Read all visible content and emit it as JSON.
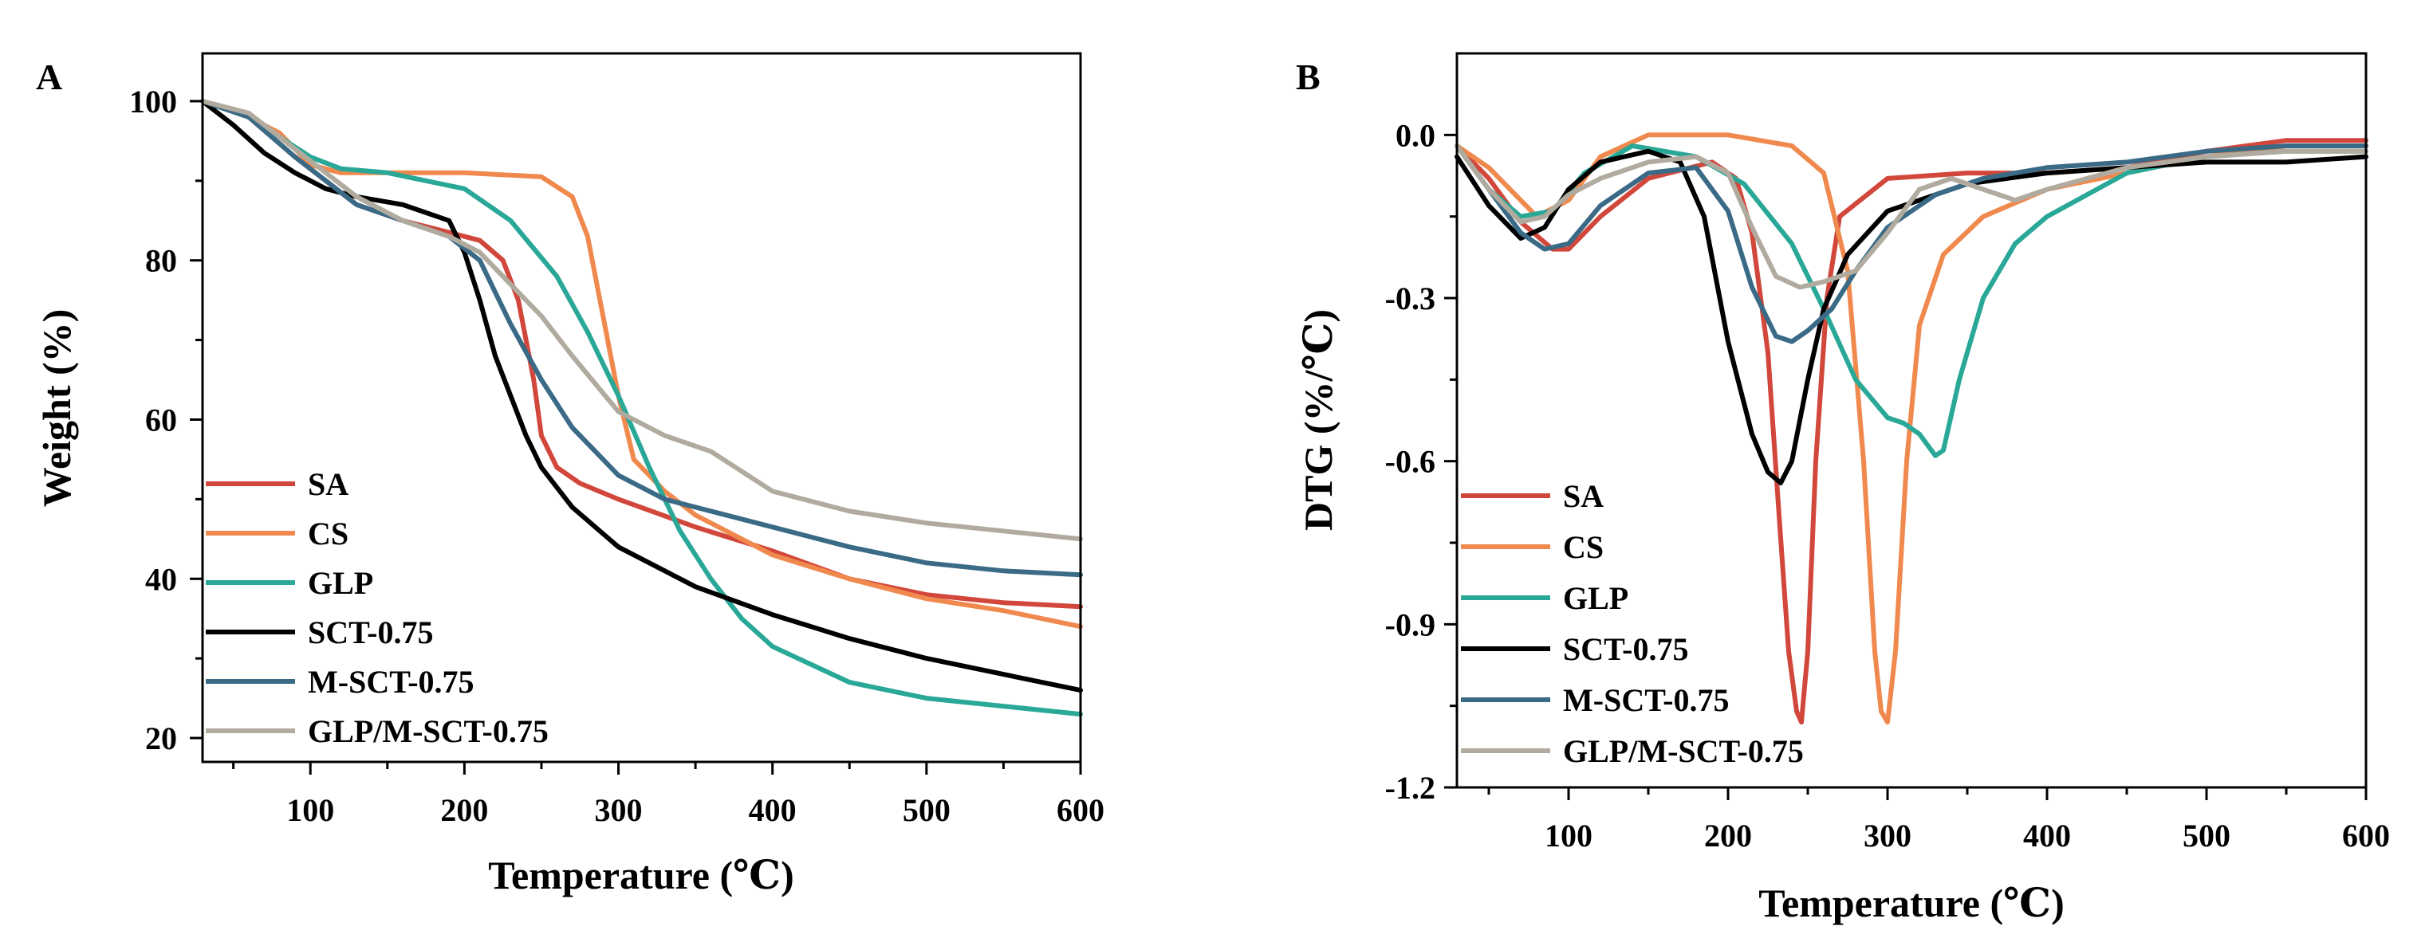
{
  "colors": {
    "SA": "#d2473b",
    "CS": "#f0894e",
    "GLP": "#2aa897",
    "SCT-0.75": "#000000",
    "M-SCT-0.75": "#3a6a86",
    "GLP/M-SCT-0.75": "#b0ab9e"
  },
  "chart_data": [
    {
      "id": "A",
      "panel_label": "A",
      "type": "line",
      "title": "",
      "xlabel": "Temperature (℃)",
      "ylabel": "Weight (%)",
      "xlim": [
        30,
        600
      ],
      "ylim": [
        17,
        106
      ],
      "xticks": [
        100,
        200,
        300,
        400,
        500,
        600
      ],
      "yticks": [
        20,
        40,
        60,
        80,
        100
      ],
      "legend_position": "bottom-left",
      "series": [
        {
          "name": "SA",
          "color": "#d2473b",
          "x": [
            30,
            60,
            90,
            110,
            130,
            160,
            190,
            210,
            225,
            235,
            245,
            250,
            260,
            275,
            300,
            350,
            400,
            450,
            500,
            550,
            600
          ],
          "y": [
            100,
            98,
            93,
            90,
            87,
            85,
            83.5,
            82.5,
            80,
            75,
            65,
            58,
            54,
            52,
            50,
            46.5,
            43.5,
            40,
            38,
            37,
            36.5
          ]
        },
        {
          "name": "CS",
          "color": "#f0894e",
          "x": [
            30,
            60,
            80,
            100,
            120,
            150,
            200,
            250,
            270,
            280,
            290,
            300,
            310,
            330,
            350,
            400,
            450,
            500,
            550,
            600
          ],
          "y": [
            100,
            98,
            96,
            92,
            91,
            91,
            91,
            90.5,
            88,
            83,
            73,
            63,
            55,
            51,
            48,
            43,
            40,
            37.5,
            36,
            34
          ]
        },
        {
          "name": "GLP",
          "color": "#2aa897",
          "x": [
            30,
            60,
            80,
            100,
            120,
            150,
            200,
            230,
            260,
            280,
            300,
            320,
            340,
            360,
            380,
            400,
            450,
            500,
            550,
            600
          ],
          "y": [
            100,
            98,
            95.5,
            93,
            91.5,
            91,
            89,
            85,
            78,
            71,
            63,
            54,
            46,
            40,
            35,
            31.5,
            27,
            25,
            24,
            23
          ]
        },
        {
          "name": "SCT-0.75",
          "color": "#000000",
          "x": [
            30,
            50,
            70,
            90,
            110,
            130,
            160,
            190,
            200,
            210,
            220,
            230,
            240,
            250,
            270,
            300,
            350,
            400,
            450,
            500,
            550,
            600
          ],
          "y": [
            100,
            97,
            93.5,
            91,
            89,
            88,
            87,
            85,
            81,
            75,
            68,
            63,
            58,
            54,
            49,
            44,
            39,
            35.5,
            32.5,
            30,
            28,
            26
          ]
        },
        {
          "name": "M-SCT-0.75",
          "color": "#3a6a86",
          "x": [
            30,
            60,
            90,
            110,
            130,
            160,
            190,
            210,
            230,
            250,
            270,
            300,
            330,
            350,
            400,
            450,
            500,
            550,
            600
          ],
          "y": [
            100,
            98,
            93,
            90,
            87,
            85,
            83,
            80,
            72,
            65,
            59,
            53,
            50,
            49,
            46.5,
            44,
            42,
            41,
            40.5
          ]
        },
        {
          "name": "GLP/M-SCT-0.75",
          "color": "#b0ab9e",
          "x": [
            30,
            60,
            90,
            110,
            130,
            160,
            190,
            210,
            230,
            250,
            270,
            300,
            330,
            360,
            400,
            450,
            500,
            550,
            600
          ],
          "y": [
            100,
            98.5,
            94,
            91,
            88,
            85,
            83,
            81,
            77,
            73,
            68,
            61,
            58,
            56,
            51,
            48.5,
            47,
            46,
            45
          ]
        }
      ]
    },
    {
      "id": "B",
      "panel_label": "B",
      "type": "line",
      "title": "",
      "xlabel": "Temperature (℃)",
      "ylabel": "DTG (%/℃)",
      "xlim": [
        30,
        600
      ],
      "ylim": [
        -1.2,
        0.15
      ],
      "xticks": [
        100,
        200,
        300,
        400,
        500,
        600
      ],
      "ytick_values": [
        0.0,
        -0.3,
        -0.6,
        -0.9,
        -1.2
      ],
      "ytick_labels": [
        "0.0",
        "-0.3",
        "-0.6",
        "-0.9",
        "-1.2"
      ],
      "legend_position": "bottom-left",
      "series": [
        {
          "name": "SA",
          "color": "#d2473b",
          "x": [
            30,
            50,
            70,
            90,
            100,
            120,
            150,
            190,
            205,
            215,
            225,
            232,
            238,
            243,
            246,
            250,
            255,
            262,
            270,
            300,
            350,
            400,
            450,
            500,
            550,
            600
          ],
          "y": [
            -0.02,
            -0.08,
            -0.16,
            -0.21,
            -0.21,
            -0.15,
            -0.08,
            -0.05,
            -0.08,
            -0.18,
            -0.4,
            -0.7,
            -0.95,
            -1.06,
            -1.08,
            -0.95,
            -0.6,
            -0.3,
            -0.15,
            -0.08,
            -0.07,
            -0.07,
            -0.06,
            -0.03,
            -0.01,
            -0.01
          ]
        },
        {
          "name": "CS",
          "color": "#f0894e",
          "x": [
            30,
            50,
            80,
            100,
            120,
            150,
            200,
            240,
            260,
            275,
            285,
            292,
            296,
            300,
            305,
            312,
            320,
            335,
            360,
            400,
            450,
            500,
            550,
            600
          ],
          "y": [
            -0.02,
            -0.06,
            -0.15,
            -0.12,
            -0.04,
            0.0,
            0.0,
            -0.02,
            -0.07,
            -0.25,
            -0.6,
            -0.95,
            -1.06,
            -1.08,
            -0.95,
            -0.6,
            -0.35,
            -0.22,
            -0.15,
            -0.1,
            -0.07,
            -0.04,
            -0.02,
            -0.02
          ]
        },
        {
          "name": "GLP",
          "color": "#2aa897",
          "x": [
            30,
            50,
            70,
            90,
            110,
            140,
            180,
            210,
            240,
            260,
            280,
            300,
            310,
            320,
            330,
            335,
            345,
            360,
            380,
            400,
            450,
            500,
            550,
            600
          ],
          "y": [
            -0.02,
            -0.1,
            -0.15,
            -0.14,
            -0.07,
            -0.02,
            -0.04,
            -0.09,
            -0.2,
            -0.32,
            -0.45,
            -0.52,
            -0.53,
            -0.55,
            -0.59,
            -0.58,
            -0.45,
            -0.3,
            -0.2,
            -0.15,
            -0.07,
            -0.04,
            -0.03,
            -0.03
          ]
        },
        {
          "name": "SCT-0.75",
          "color": "#000000",
          "x": [
            30,
            50,
            70,
            85,
            100,
            120,
            150,
            170,
            185,
            200,
            215,
            225,
            233,
            240,
            250,
            260,
            275,
            300,
            350,
            400,
            450,
            500,
            550,
            600
          ],
          "y": [
            -0.04,
            -0.13,
            -0.19,
            -0.17,
            -0.1,
            -0.05,
            -0.03,
            -0.05,
            -0.15,
            -0.38,
            -0.55,
            -0.62,
            -0.64,
            -0.6,
            -0.45,
            -0.32,
            -0.22,
            -0.14,
            -0.09,
            -0.07,
            -0.06,
            -0.05,
            -0.05,
            -0.04
          ]
        },
        {
          "name": "M-SCT-0.75",
          "color": "#3a6a86",
          "x": [
            30,
            50,
            70,
            85,
            100,
            120,
            150,
            180,
            200,
            215,
            230,
            240,
            250,
            265,
            280,
            300,
            330,
            360,
            400,
            450,
            500,
            550,
            600
          ],
          "y": [
            -0.02,
            -0.1,
            -0.18,
            -0.21,
            -0.2,
            -0.13,
            -0.07,
            -0.06,
            -0.14,
            -0.28,
            -0.37,
            -0.38,
            -0.36,
            -0.32,
            -0.25,
            -0.17,
            -0.11,
            -0.08,
            -0.06,
            -0.05,
            -0.03,
            -0.02,
            -0.02
          ]
        },
        {
          "name": "GLP/M-SCT-0.75",
          "color": "#b0ab9e",
          "x": [
            30,
            50,
            70,
            85,
            100,
            120,
            150,
            180,
            200,
            215,
            230,
            245,
            260,
            280,
            300,
            320,
            340,
            360,
            380,
            400,
            450,
            500,
            550,
            600
          ],
          "y": [
            -0.02,
            -0.1,
            -0.16,
            -0.15,
            -0.11,
            -0.08,
            -0.05,
            -0.04,
            -0.07,
            -0.17,
            -0.26,
            -0.28,
            -0.27,
            -0.25,
            -0.18,
            -0.1,
            -0.08,
            -0.1,
            -0.12,
            -0.1,
            -0.06,
            -0.04,
            -0.03,
            -0.03
          ]
        }
      ]
    }
  ]
}
